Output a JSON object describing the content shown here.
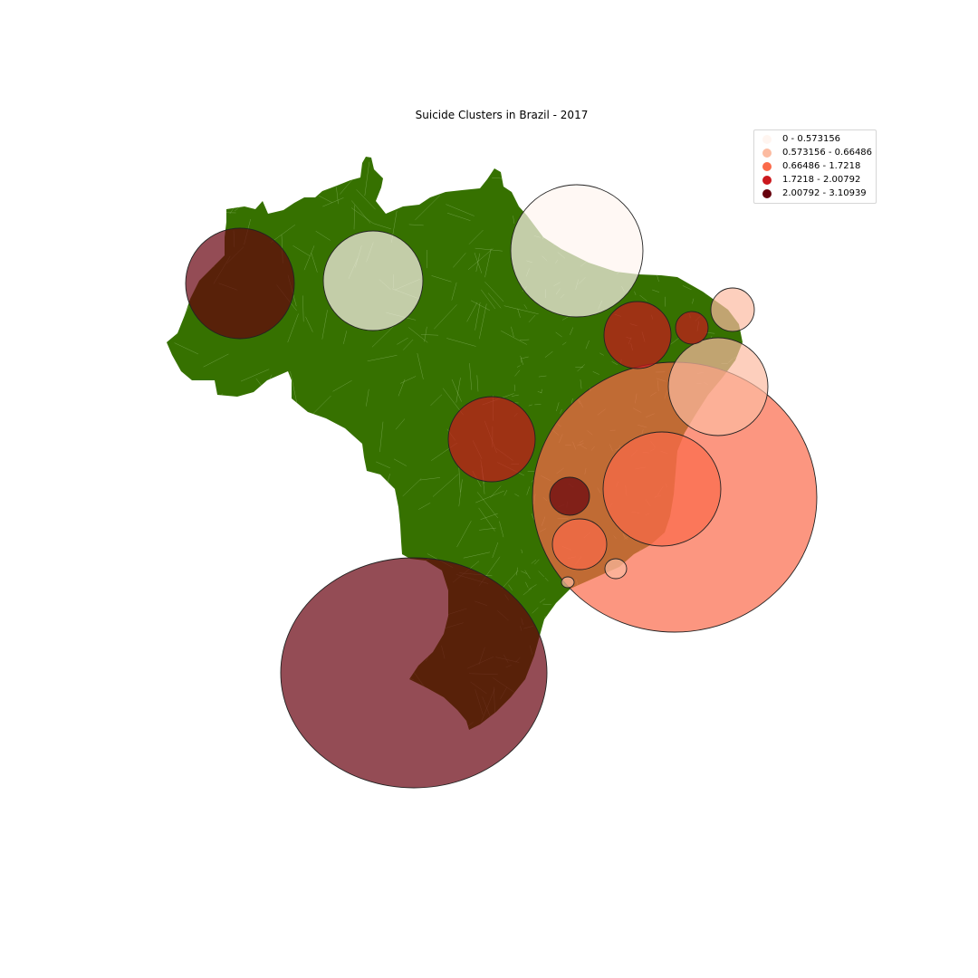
{
  "title": "Suicide Clusters in Brazil - 2017",
  "legend": {
    "items": [
      {
        "label": "0 - 0.573156",
        "color": "#fff5f0"
      },
      {
        "label": "0.573156 - 0.66486",
        "color": "#fcbba1"
      },
      {
        "label": "0.66486 - 1.7218",
        "color": "#fb6a4a"
      },
      {
        "label": "1.7218 - 2.00792",
        "color": "#cb181d"
      },
      {
        "label": "2.00792 - 3.10939",
        "color": "#67000d"
      }
    ]
  },
  "colors": {
    "land": "#367100",
    "borders": "#9bc27a",
    "bubble_edge": "#222222"
  },
  "clusters": [
    {
      "class": 4
    },
    {
      "class": 0
    },
    {
      "class": 0
    },
    {
      "class": 2
    },
    {
      "class": 3
    },
    {
      "class": 1
    },
    {
      "class": 1
    },
    {
      "class": 3
    },
    {
      "class": 2
    },
    {
      "class": 4
    },
    {
      "class": 2
    },
    {
      "class": 1
    },
    {
      "class": 1
    },
    {
      "class": 4
    }
  ]
}
